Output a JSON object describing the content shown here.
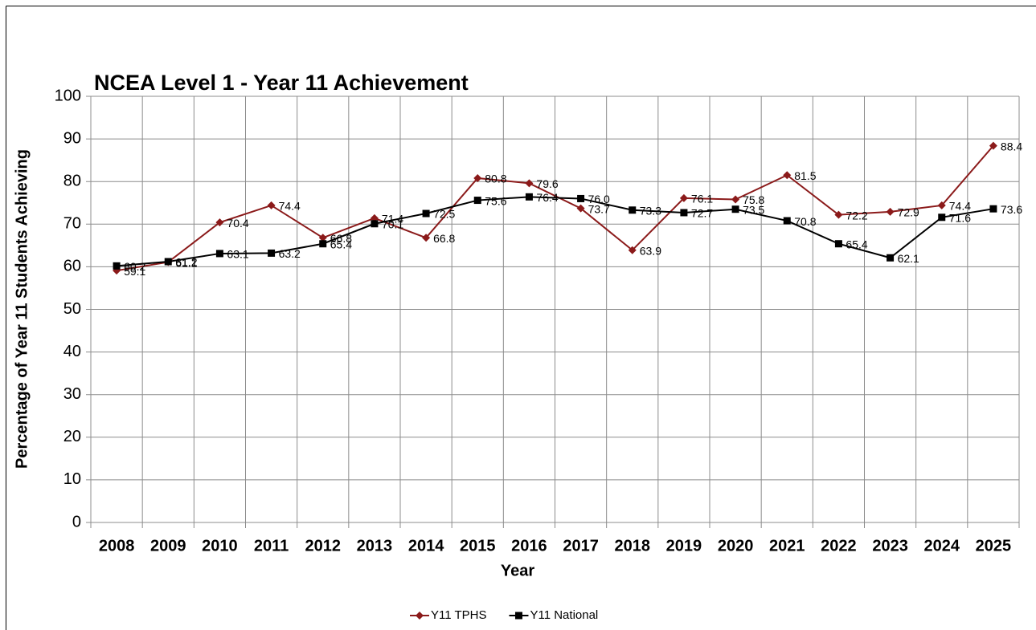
{
  "chart_data": {
    "type": "line",
    "title": "NCEA Level 1 - Year 11 Achievement",
    "y_label": "Percentage of Year 11 Students Achieving",
    "x_label": "Year",
    "categories": [
      "2008",
      "2009",
      "2010",
      "2011",
      "2012",
      "2013",
      "2014",
      "2015",
      "2016",
      "2017",
      "2018",
      "2019",
      "2020",
      "2021",
      "2022",
      "2023",
      "2024",
      "2025"
    ],
    "series": [
      {
        "name": "Y11 TPHS",
        "color": "#8b1a1a",
        "marker": "diamond",
        "values": [
          59.1,
          61.1,
          70.4,
          74.4,
          66.8,
          71.4,
          66.8,
          80.8,
          79.6,
          73.7,
          63.9,
          76.1,
          75.8,
          81.5,
          72.2,
          72.9,
          74.4,
          88.4
        ],
        "value_labels": [
          "59.1",
          "61.1",
          "70.4",
          "74.4",
          "66.8",
          "71.4",
          "66.8",
          "80.8",
          "79.6",
          "73.7",
          "63.9",
          "76.1",
          "75.8",
          "81.5",
          "72.2",
          "72.9",
          "74.4",
          "88.4"
        ]
      },
      {
        "name": "Y11 National",
        "color": "#000000",
        "marker": "square",
        "values": [
          60.2,
          61.2,
          63.1,
          63.2,
          65.4,
          70.1,
          72.5,
          75.6,
          76.4,
          76.0,
          73.3,
          72.7,
          73.5,
          70.8,
          65.4,
          62.1,
          71.6,
          73.6
        ],
        "value_labels": [
          "60.2",
          "61.2",
          "63.1",
          "63.2",
          "65.4",
          "70.1",
          "72.5",
          "75.6",
          "76.4",
          "76.0",
          "73.3",
          "72.7",
          "73.5",
          "70.8",
          "65.4",
          "62.1",
          "71.6",
          "73.6"
        ]
      }
    ],
    "ylim": [
      0,
      100
    ],
    "yticks": [
      0,
      10,
      20,
      30,
      40,
      50,
      60,
      70,
      80,
      90,
      100
    ],
    "grid": true,
    "legend": "bottom"
  }
}
